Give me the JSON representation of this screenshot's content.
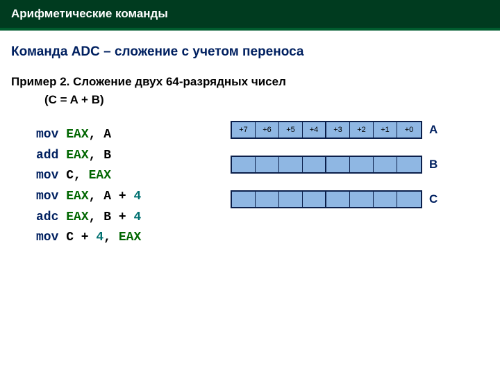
{
  "header": {
    "title": "Арифметические команды"
  },
  "subhead": "Команда ADC – сложение с учетом переноса",
  "example": {
    "title": "Пример 2. Сложение двух 64-разрядных чисел",
    "sub": "(C = A + B)"
  },
  "code": {
    "lines": [
      [
        {
          "t": "mov",
          "c": "mnem"
        },
        {
          "t": " ",
          "c": "txt"
        },
        {
          "t": "EAX",
          "c": "reg"
        },
        {
          "t": ", A",
          "c": "txt"
        }
      ],
      [
        {
          "t": "add",
          "c": "mnem"
        },
        {
          "t": " ",
          "c": "txt"
        },
        {
          "t": "EAX",
          "c": "reg"
        },
        {
          "t": ", B",
          "c": "txt"
        }
      ],
      [
        {
          "t": "mov",
          "c": "mnem"
        },
        {
          "t": " C, ",
          "c": "txt"
        },
        {
          "t": "EAX",
          "c": "reg"
        }
      ],
      [
        {
          "t": "mov",
          "c": "mnem"
        },
        {
          "t": " ",
          "c": "txt"
        },
        {
          "t": "EAX",
          "c": "reg"
        },
        {
          "t": ", A + ",
          "c": "txt"
        },
        {
          "t": "4",
          "c": "num"
        }
      ],
      [
        {
          "t": "adc",
          "c": "mnem"
        },
        {
          "t": " ",
          "c": "txt"
        },
        {
          "t": "EAX",
          "c": "reg"
        },
        {
          "t": ", B + ",
          "c": "txt"
        },
        {
          "t": "4",
          "c": "num"
        }
      ],
      [
        {
          "t": "mov",
          "c": "mnem"
        },
        {
          "t": " C + ",
          "c": "txt"
        },
        {
          "t": "4",
          "c": "num"
        },
        {
          "t": ", ",
          "c": "txt"
        },
        {
          "t": "EAX",
          "c": "reg"
        }
      ]
    ]
  },
  "diagram": {
    "rows": [
      {
        "label": "A",
        "cells": [
          "+7",
          "+6",
          "+5",
          "+4",
          "+3",
          "+2",
          "+1",
          "+0"
        ]
      },
      {
        "label": "B",
        "cells": [
          "",
          "",
          "",
          "",
          "",
          "",
          "",
          ""
        ]
      },
      {
        "label": "C",
        "cells": [
          "",
          "",
          "",
          "",
          "",
          "",
          "",
          ""
        ]
      }
    ],
    "colors": {
      "cell_bg": "#8fb7e3",
      "border": "#0b1f4b",
      "label": "#002060"
    }
  }
}
